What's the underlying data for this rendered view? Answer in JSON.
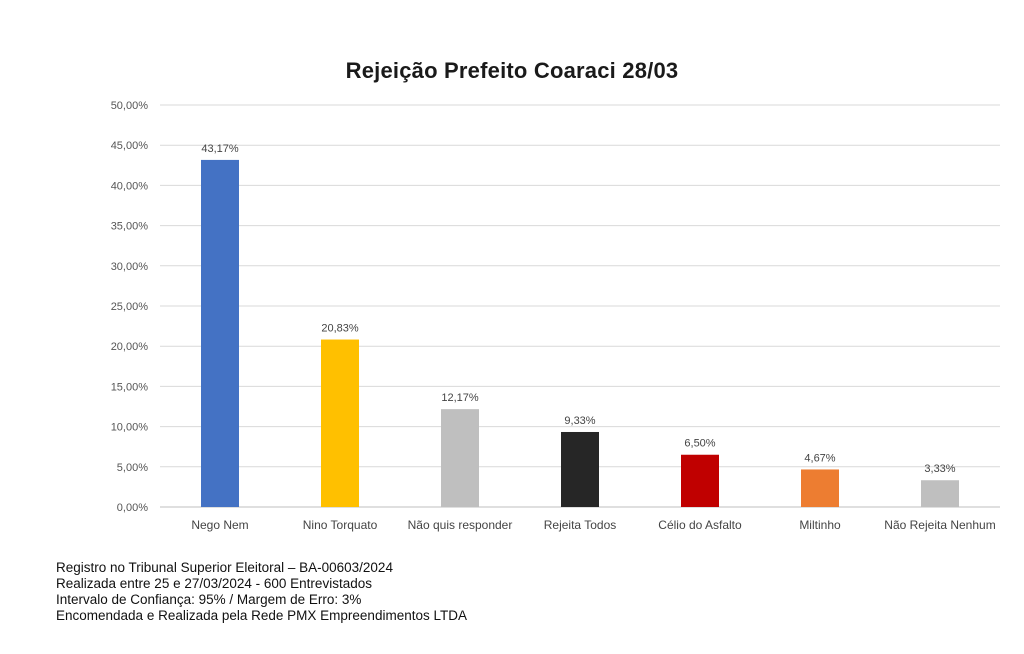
{
  "chart_data": {
    "type": "bar",
    "title": "Rejeição Prefeito Coaraci 28/03",
    "xlabel": "",
    "ylabel": "",
    "ylim": [
      0,
      50
    ],
    "yticks": [
      "0,00%",
      "5,00%",
      "10,00%",
      "15,00%",
      "20,00%",
      "25,00%",
      "30,00%",
      "35,00%",
      "40,00%",
      "45,00%",
      "50,00%"
    ],
    "grid": true,
    "legend": "none",
    "categories": [
      "Nego Nem",
      "Nino Torquato",
      "Não quis responder",
      "Rejeita Todos",
      "Célio do Asfalto",
      "Miltinho",
      "Não Rejeita Nenhum"
    ],
    "values": [
      43.17,
      20.83,
      12.17,
      9.33,
      6.5,
      4.67,
      3.33
    ],
    "data_labels": [
      "43,17%",
      "20,83%",
      "12,17%",
      "9,33%",
      "6,50%",
      "4,67%",
      "3,33%"
    ],
    "colors": [
      "#4472C4",
      "#FFC000",
      "#BFBFBF",
      "#262626",
      "#C00000",
      "#ED7D31",
      "#BFBFBF"
    ]
  },
  "footnotes": [
    "Registro no Tribunal Superior Eleitoral – BA-00603/2024",
    "Realizada entre 25 e 27/03/2024 - 600 Entrevistados",
    "Intervalo de Confiança: 95% / Margem de Erro: 3%",
    "Encomendada e Realizada pela Rede PMX Empreendimentos LTDA"
  ]
}
